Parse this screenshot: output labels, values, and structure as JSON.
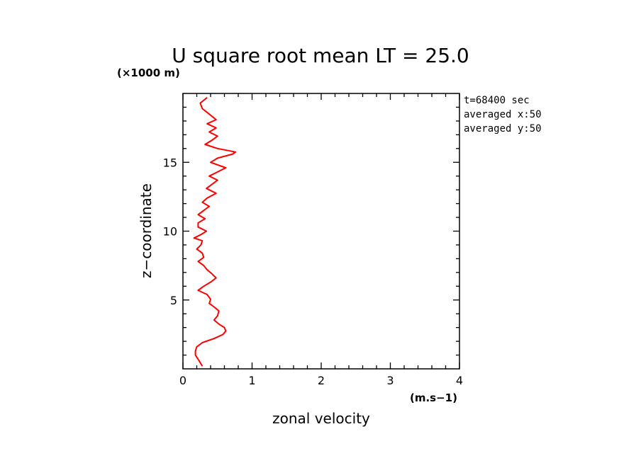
{
  "chart_data": {
    "type": "line",
    "title": "U square root mean LT = 25.0",
    "xlabel": "zonal velocity",
    "ylabel": "z−coordinate",
    "x_unit": "(m.s−1)",
    "y_unit": "(×1000 m)",
    "xlim": [
      0,
      4
    ],
    "ylim": [
      0,
      20
    ],
    "x_ticks": [
      0,
      1,
      2,
      3,
      4
    ],
    "y_ticks": [
      5,
      10,
      15
    ],
    "info": [
      "t=68400 sec",
      "averaged  x:50",
      "averaged  y:50"
    ],
    "series_color": "#ff0000",
    "series": [
      {
        "x": [
          0.28,
          0.22,
          0.18,
          0.18,
          0.2,
          0.28,
          0.45,
          0.58,
          0.62,
          0.6,
          0.52,
          0.45,
          0.5,
          0.52,
          0.45,
          0.38,
          0.4,
          0.35,
          0.22,
          0.3,
          0.4,
          0.48,
          0.42,
          0.35,
          0.3,
          0.22,
          0.3,
          0.28,
          0.2,
          0.26,
          0.28,
          0.16,
          0.26,
          0.34,
          0.22,
          0.22,
          0.32,
          0.22,
          0.3,
          0.38,
          0.28,
          0.35,
          0.48,
          0.34,
          0.42,
          0.5,
          0.38,
          0.5,
          0.62,
          0.4,
          0.5,
          0.72,
          0.76,
          0.5,
          0.32,
          0.42,
          0.5,
          0.38,
          0.48,
          0.35,
          0.48,
          0.38,
          0.28,
          0.25,
          0.35
        ],
        "y": [
          0.2,
          0.7,
          1.0,
          1.3,
          1.6,
          1.9,
          2.2,
          2.5,
          2.75,
          3.0,
          3.25,
          3.55,
          3.85,
          4.2,
          4.5,
          4.75,
          5.05,
          5.4,
          5.7,
          6.0,
          6.3,
          6.6,
          6.9,
          7.2,
          7.5,
          7.8,
          8.1,
          8.4,
          8.7,
          9.0,
          9.3,
          9.5,
          9.75,
          10.0,
          10.3,
          10.6,
          10.9,
          11.2,
          11.5,
          11.8,
          12.1,
          12.4,
          12.75,
          13.1,
          13.4,
          13.7,
          14.0,
          14.3,
          14.6,
          15.0,
          15.3,
          15.6,
          15.75,
          16.0,
          16.3,
          16.6,
          16.9,
          17.2,
          17.5,
          17.8,
          18.1,
          18.5,
          18.9,
          19.3,
          19.7
        ]
      }
    ]
  }
}
